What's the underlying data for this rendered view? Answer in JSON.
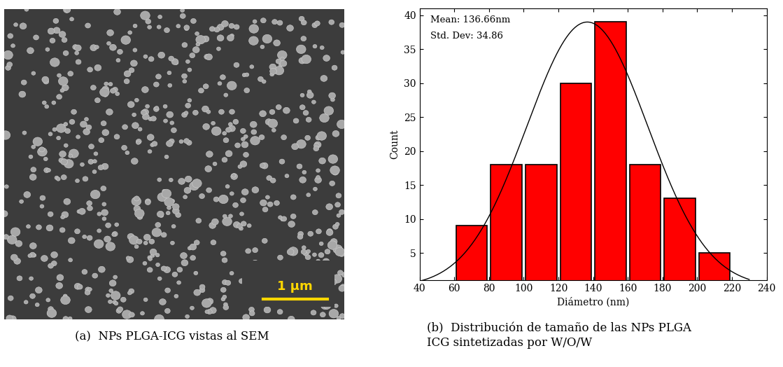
{
  "image_panel": {
    "scale_bar": "1 µm",
    "caption": "(a)  NPs PLGA-ICG vistas al SEM"
  },
  "chart_data": {
    "type": "histogram",
    "caption": "(b)  Distribución de tamaño de las NPs PLGA\nICG sintetizadas por W/O/W",
    "x_label": "Diámetro (nm)",
    "y_label": "Count",
    "annotations": [
      "Mean: 136.66nm",
      "Std. Dev: 34.86"
    ],
    "bins": [
      60,
      80,
      100,
      120,
      140,
      160,
      180,
      200,
      220
    ],
    "values": [
      9,
      18,
      18,
      30,
      39,
      18,
      13,
      5
    ],
    "color": "#ff0000",
    "fit": {
      "mean": 136.66,
      "std_dev": 34.86,
      "peak": 39,
      "range": [
        40,
        230
      ]
    },
    "xlim": [
      40,
      240
    ],
    "xticks": [
      40,
      60,
      80,
      100,
      120,
      140,
      160,
      180,
      200,
      220,
      240
    ],
    "ylim": [
      1,
      41
    ],
    "yticks": [
      5,
      10,
      15,
      20,
      25,
      30,
      35,
      40
    ],
    "grid": false
  }
}
